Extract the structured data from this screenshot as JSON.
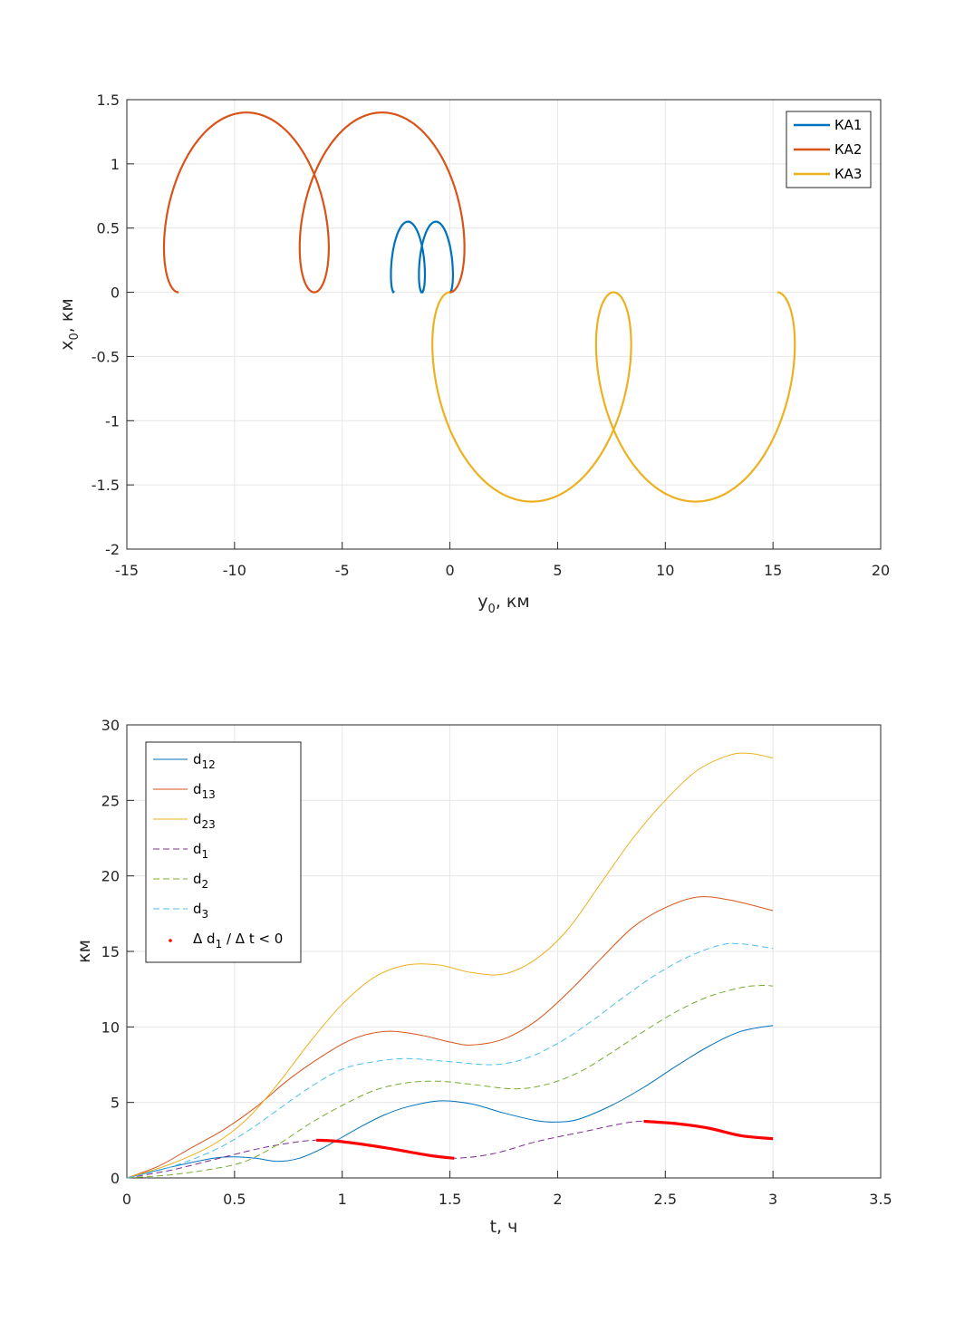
{
  "chart_data": [
    {
      "type": "line",
      "xlabel": "y",
      "xlabel_sub": "0",
      "xlabel_unit": ", км",
      "ylabel": "x",
      "ylabel_sub": "0",
      "ylabel_unit": ", км",
      "xlim": [
        -15,
        20
      ],
      "ylim": [
        -2,
        1.5
      ],
      "xticks": [
        -15,
        -10,
        -5,
        0,
        5,
        10,
        15,
        20
      ],
      "yticks": [
        -2,
        -1.5,
        -1,
        -0.5,
        0,
        0.5,
        1,
        1.5
      ],
      "xtick_labels": [
        "-15",
        "-10",
        "-5",
        "0",
        "5",
        "10",
        "15",
        "20"
      ],
      "ytick_labels": [
        "-2",
        "-1.5",
        "-1",
        "-0.5",
        "0",
        "0.5",
        "1",
        "1.5"
      ],
      "grid": true,
      "legend_position": "top-right",
      "series": [
        {
          "name": "КА1",
          "color": "#0072BD",
          "trochoid": {
            "x0": 0,
            "r": 0.45,
            "b": 0.55,
            "y_offset": 0.13,
            "cx_sign": -1,
            "loops": 2,
            "span": 2.6
          }
        },
        {
          "name": "КА2",
          "color": "#D95319",
          "trochoid": {
            "x0": 0,
            "r": 0.72,
            "b": 1.4,
            "y_offset": 0.67,
            "cx_sign": -1,
            "loops": 2,
            "span": 12.6
          }
        },
        {
          "name": "КА3",
          "color": "#EDB120",
          "trochoid": {
            "x0": 0,
            "r": 0.82,
            "b": 1.63,
            "y_offset": -0.81,
            "cx_sign": 1,
            "loops": 2,
            "span": 15.2
          }
        }
      ]
    },
    {
      "type": "line",
      "xlabel": "t, ч",
      "ylabel": "км",
      "xlim": [
        0,
        3.5
      ],
      "ylim": [
        0,
        30
      ],
      "xticks": [
        0,
        0.5,
        1,
        1.5,
        2,
        2.5,
        3,
        3.5
      ],
      "yticks": [
        0,
        5,
        10,
        15,
        20,
        25,
        30
      ],
      "xtick_labels": [
        "0",
        "0.5",
        "1",
        "1.5",
        "2",
        "2.5",
        "3",
        "3.5"
      ],
      "ytick_labels": [
        "0",
        "5",
        "10",
        "15",
        "20",
        "25",
        "30"
      ],
      "grid": true,
      "legend_position": "top-left",
      "x": [
        0,
        0.25,
        0.5,
        0.75,
        1.0,
        1.25,
        1.5,
        1.75,
        2.0,
        2.25,
        2.5,
        2.75,
        3.0
      ],
      "series": [
        {
          "name": "d",
          "sub": "12",
          "color": "#0072BD",
          "dash": false,
          "points": [
            [
              0,
              0
            ],
            [
              0.2,
              0.7
            ],
            [
              0.4,
              1.3
            ],
            [
              0.5,
              1.4
            ],
            [
              0.6,
              1.3
            ],
            [
              0.7,
              1.1
            ],
            [
              0.8,
              1.3
            ],
            [
              0.9,
              1.9
            ],
            [
              1.0,
              2.7
            ],
            [
              1.1,
              3.5
            ],
            [
              1.2,
              4.2
            ],
            [
              1.3,
              4.7
            ],
            [
              1.45,
              5.1
            ],
            [
              1.6,
              4.9
            ],
            [
              1.75,
              4.3
            ],
            [
              1.9,
              3.8
            ],
            [
              2.0,
              3.7
            ],
            [
              2.1,
              3.9
            ],
            [
              2.25,
              4.8
            ],
            [
              2.4,
              6.0
            ],
            [
              2.55,
              7.4
            ],
            [
              2.7,
              8.7
            ],
            [
              2.85,
              9.7
            ],
            [
              3.0,
              10.1
            ]
          ]
        },
        {
          "name": "d",
          "sub": "13",
          "color": "#D95319",
          "dash": false,
          "points": [
            [
              0,
              0
            ],
            [
              0.15,
              0.8
            ],
            [
              0.3,
              2.0
            ],
            [
              0.45,
              3.2
            ],
            [
              0.6,
              4.7
            ],
            [
              0.75,
              6.5
            ],
            [
              0.9,
              8.0
            ],
            [
              1.05,
              9.2
            ],
            [
              1.2,
              9.7
            ],
            [
              1.35,
              9.5
            ],
            [
              1.5,
              9.0
            ],
            [
              1.6,
              8.8
            ],
            [
              1.75,
              9.2
            ],
            [
              1.9,
              10.4
            ],
            [
              2.05,
              12.3
            ],
            [
              2.2,
              14.5
            ],
            [
              2.35,
              16.6
            ],
            [
              2.5,
              17.9
            ],
            [
              2.65,
              18.6
            ],
            [
              2.8,
              18.4
            ],
            [
              3.0,
              17.7
            ]
          ]
        },
        {
          "name": "d",
          "sub": "23",
          "color": "#EDB120",
          "dash": false,
          "points": [
            [
              0,
              0
            ],
            [
              0.2,
              0.9
            ],
            [
              0.4,
              2.2
            ],
            [
              0.55,
              3.8
            ],
            [
              0.7,
              6.2
            ],
            [
              0.85,
              9.0
            ],
            [
              1.0,
              11.5
            ],
            [
              1.15,
              13.3
            ],
            [
              1.3,
              14.1
            ],
            [
              1.45,
              14.1
            ],
            [
              1.6,
              13.6
            ],
            [
              1.75,
              13.5
            ],
            [
              1.9,
              14.5
            ],
            [
              2.05,
              16.5
            ],
            [
              2.2,
              19.5
            ],
            [
              2.35,
              22.5
            ],
            [
              2.5,
              25.0
            ],
            [
              2.65,
              27.0
            ],
            [
              2.8,
              28.0
            ],
            [
              2.9,
              28.1
            ],
            [
              3.0,
              27.8
            ]
          ]
        },
        {
          "name": "d",
          "sub": "1",
          "color": "#7E2F8E",
          "dash": true,
          "points": [
            [
              0,
              0
            ],
            [
              0.2,
              0.5
            ],
            [
              0.4,
              1.2
            ],
            [
              0.6,
              1.9
            ],
            [
              0.75,
              2.3
            ],
            [
              0.88,
              2.5
            ],
            [
              1.0,
              2.4
            ],
            [
              1.2,
              2.0
            ],
            [
              1.4,
              1.5
            ],
            [
              1.52,
              1.3
            ],
            [
              1.7,
              1.6
            ],
            [
              1.9,
              2.4
            ],
            [
              2.1,
              3.0
            ],
            [
              2.3,
              3.6
            ],
            [
              2.4,
              3.75
            ],
            [
              2.55,
              3.6
            ],
            [
              2.7,
              3.3
            ],
            [
              2.85,
              2.8
            ],
            [
              3.0,
              2.6
            ]
          ]
        },
        {
          "name": "d",
          "sub": "2",
          "color": "#77AC30",
          "dash": true,
          "points": [
            [
              0,
              0
            ],
            [
              0.2,
              0.2
            ],
            [
              0.4,
              0.6
            ],
            [
              0.55,
              1.1
            ],
            [
              0.7,
              2.2
            ],
            [
              0.85,
              3.6
            ],
            [
              1.0,
              4.8
            ],
            [
              1.15,
              5.8
            ],
            [
              1.3,
              6.3
            ],
            [
              1.45,
              6.4
            ],
            [
              1.6,
              6.2
            ],
            [
              1.8,
              5.9
            ],
            [
              1.95,
              6.2
            ],
            [
              2.1,
              7.0
            ],
            [
              2.25,
              8.3
            ],
            [
              2.4,
              9.7
            ],
            [
              2.55,
              11.0
            ],
            [
              2.7,
              12.0
            ],
            [
              2.85,
              12.6
            ],
            [
              2.95,
              12.75
            ],
            [
              3.0,
              12.7
            ]
          ]
        },
        {
          "name": "d",
          "sub": "3",
          "color": "#4DBEEE",
          "dash": true,
          "points": [
            [
              0,
              0
            ],
            [
              0.2,
              0.7
            ],
            [
              0.4,
              1.8
            ],
            [
              0.55,
              3.0
            ],
            [
              0.7,
              4.5
            ],
            [
              0.85,
              6.0
            ],
            [
              1.0,
              7.2
            ],
            [
              1.15,
              7.7
            ],
            [
              1.3,
              7.9
            ],
            [
              1.5,
              7.7
            ],
            [
              1.7,
              7.5
            ],
            [
              1.85,
              7.9
            ],
            [
              2.0,
              8.9
            ],
            [
              2.15,
              10.3
            ],
            [
              2.3,
              11.9
            ],
            [
              2.45,
              13.4
            ],
            [
              2.6,
              14.6
            ],
            [
              2.75,
              15.4
            ],
            [
              2.85,
              15.5
            ],
            [
              3.0,
              15.2
            ]
          ]
        },
        {
          "name": "Δ d",
          "sub": "1",
          "suffix": " / Δ t < 0",
          "color": "#FF0000",
          "marker": true,
          "segments": [
            [
              [
                0.88,
                2.5
              ],
              [
                1.0,
                2.4
              ],
              [
                1.2,
                2.0
              ],
              [
                1.4,
                1.5
              ],
              [
                1.52,
                1.3
              ]
            ],
            [
              [
                2.4,
                3.75
              ],
              [
                2.55,
                3.6
              ],
              [
                2.7,
                3.3
              ],
              [
                2.85,
                2.8
              ],
              [
                3.0,
                2.6
              ]
            ]
          ]
        }
      ]
    }
  ]
}
